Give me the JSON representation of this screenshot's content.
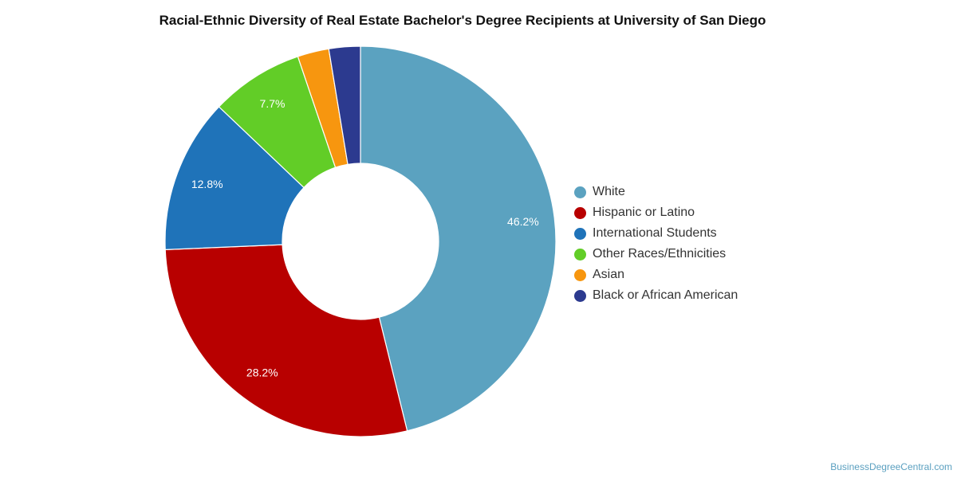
{
  "chart_data": {
    "type": "pie",
    "donut": true,
    "title": "Racial-Ethnic Diversity of Real Estate Bachelor's Degree Recipients at University of San Diego",
    "legend_position": "right",
    "slices": [
      {
        "name": "White",
        "value": 46.2,
        "label": "46.2%",
        "color": "#5ba2c0"
      },
      {
        "name": "Hispanic or Latino",
        "value": 28.2,
        "label": "28.2%",
        "color": "#b80000"
      },
      {
        "name": "International Students",
        "value": 12.8,
        "label": "12.8%",
        "color": "#1f73b9"
      },
      {
        "name": "Other Races/Ethnicities",
        "value": 7.7,
        "label": "7.7%",
        "color": "#62cd27"
      },
      {
        "name": "Asian",
        "value": 2.6,
        "label": "",
        "color": "#f7960f"
      },
      {
        "name": "Black or African American",
        "value": 2.6,
        "label": "",
        "color": "#2c3a8f"
      }
    ]
  },
  "credit": "BusinessDegreeCentral.com"
}
